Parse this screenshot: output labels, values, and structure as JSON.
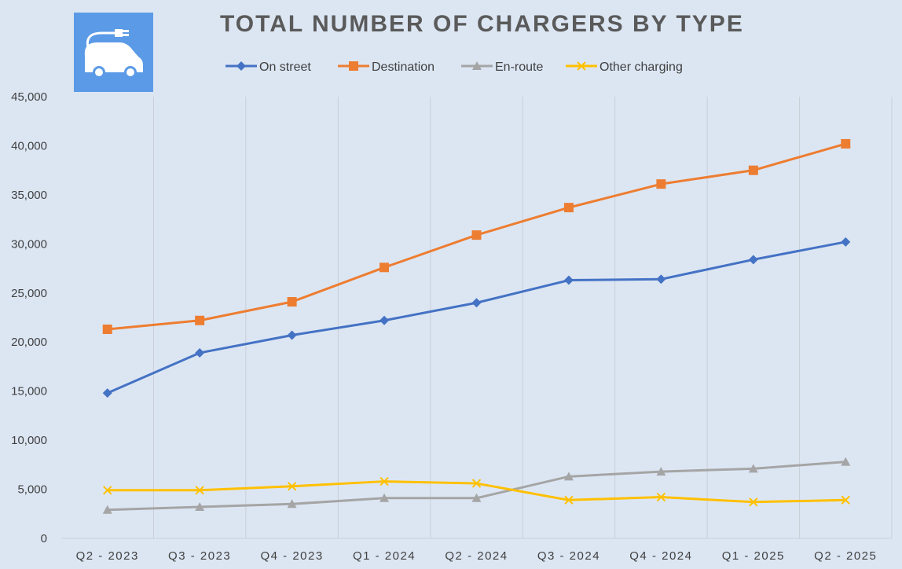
{
  "chart_data": {
    "type": "line",
    "title": "TOTAL NUMBER OF CHARGERS BY TYPE",
    "categories": [
      "Q2 - 2023",
      "Q3 - 2023",
      "Q4 - 2023",
      "Q1 - 2024",
      "Q2 - 2024",
      "Q3 - 2024",
      "Q4 - 2024",
      "Q1 - 2025",
      "Q2 - 2025"
    ],
    "ylim": [
      0,
      45000
    ],
    "yticks": [
      0,
      5000,
      10000,
      15000,
      20000,
      25000,
      30000,
      35000,
      40000,
      45000
    ],
    "ytick_labels": [
      "0",
      "5,000",
      "10,000",
      "15,000",
      "20,000",
      "25,000",
      "30,000",
      "35,000",
      "40,000",
      "45,000"
    ],
    "grid": "vertical",
    "legend_position": "top",
    "series": [
      {
        "name": "On street",
        "marker": "diamond",
        "color": "#4472c4",
        "values": [
          14800,
          18900,
          20700,
          22200,
          24000,
          26300,
          26400,
          28400,
          30200
        ]
      },
      {
        "name": "Destination",
        "marker": "square",
        "color": "#ed7d31",
        "values": [
          21300,
          22200,
          24100,
          27600,
          30900,
          33700,
          36100,
          37500,
          40200
        ]
      },
      {
        "name": "En-route",
        "marker": "triangle",
        "color": "#a5a5a5",
        "values": [
          2900,
          3200,
          3500,
          4100,
          4100,
          6300,
          6800,
          7100,
          7800
        ]
      },
      {
        "name": "Other charging",
        "marker": "x",
        "color": "#ffc000",
        "values": [
          4900,
          4900,
          5300,
          5800,
          5600,
          3900,
          4200,
          3700,
          3900
        ]
      }
    ]
  },
  "logo": {
    "icon": "ev-charging-car-icon",
    "color": "#5b9ae6"
  }
}
